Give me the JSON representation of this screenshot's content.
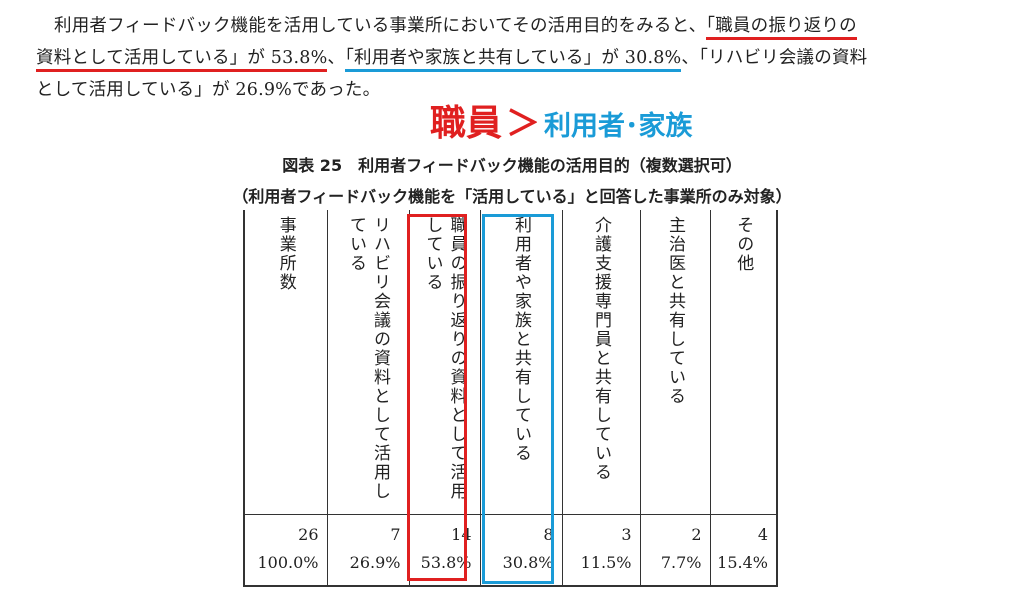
{
  "paragraph": {
    "line1_a": "利用者フィードバック機能を活用している事業所においてその活用目的をみると、",
    "line1_b": "「職員の振り返りの",
    "line2_a": "資料として活用している」が 53.8%",
    "line2_b": "、",
    "line2_c": "「利用者や家族と共有している」が 30.8%",
    "line2_d": "、「リハビリ会議の資料",
    "line3": "として活用している」が 26.9%であった。"
  },
  "callout": {
    "left": "職員",
    "symbol": "＞",
    "right": "利用者･家族"
  },
  "caption": {
    "line1": "図表 25　利用者フィードバック機能の活用目的（複数選択可）",
    "line2": "（利用者フィードバック機能を「活用している」と回答した事業所のみ対象）"
  },
  "table": {
    "headers": [
      "事業所数",
      "リハビリ会議の資料として活用している",
      "職員の振り返りの資料として活用している",
      "利用者や家族と共有している",
      "介護支援専門員と共有している",
      "主治医と共有している",
      "その他"
    ],
    "counts": [
      "26",
      "7",
      "14",
      "8",
      "3",
      "2",
      "4"
    ],
    "percents": [
      "100.0%",
      "26.9%",
      "53.8%",
      "30.8%",
      "11.5%",
      "7.7%",
      "15.4%"
    ]
  },
  "colors": {
    "accent_red": "#e02020",
    "accent_blue": "#1a9bd7"
  }
}
